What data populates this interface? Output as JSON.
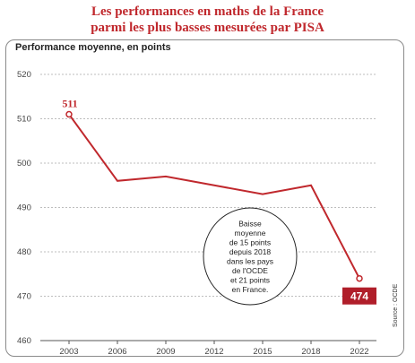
{
  "chart_data": {
    "type": "line",
    "title_lines": [
      "Les performances en maths de la France",
      "parmi les plus basses mesurées par PISA"
    ],
    "ylabel": "Performance moyenne, en points",
    "x": [
      "2003",
      "2006",
      "2009",
      "2012",
      "2015",
      "2018",
      "2022"
    ],
    "x_ticks": [
      "2003",
      "2006",
      "2009",
      "2012",
      "2015",
      "2018",
      "2022"
    ],
    "y_ticks": [
      460,
      470,
      480,
      490,
      500,
      510,
      520
    ],
    "ylim": [
      460,
      520
    ],
    "series": [
      {
        "values": [
          511,
          496,
          497,
          495,
          493,
          495,
          474
        ]
      }
    ],
    "data_labels": [
      {
        "index": 0,
        "text": "511"
      },
      {
        "index": 6,
        "text": "474"
      }
    ],
    "annotation_lines": [
      "Baisse",
      "moyenne",
      "de 15 points",
      "depuis 2018",
      "dans les pays",
      "de l'OCDE",
      "et 21 points",
      "en France."
    ],
    "source": "Source : OCDE",
    "grid": true,
    "colors": {
      "line": "#c0282d",
      "title": "#c0282d",
      "grid": "#bdbdbd"
    }
  }
}
